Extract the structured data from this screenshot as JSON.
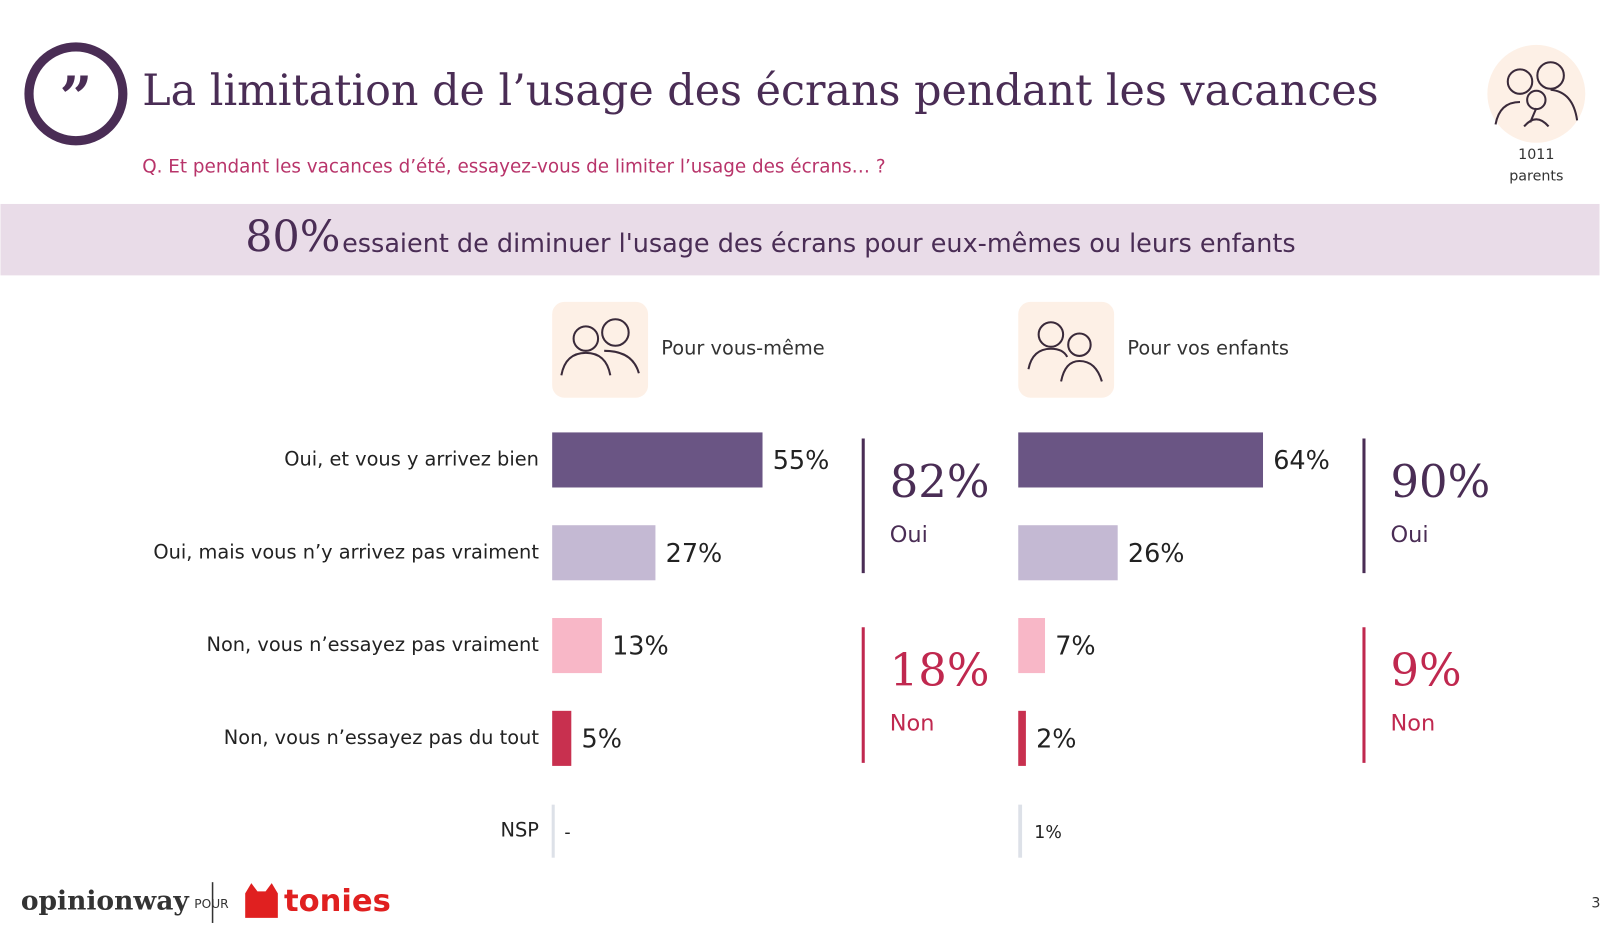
{
  "header": {
    "title": "La limitation de l’usage des écrans pendant les vacances",
    "question": "Q. Et pendant les vacances d’été, essayez-vous de limiter l’usage des écrans… ?",
    "sample_size": "1011",
    "sample_label": "parents"
  },
  "banner": {
    "figure": "80%",
    "text": "essaient de diminuer l'usage des écrans pour eux-mêmes ou leurs enfants"
  },
  "chart_data": {
    "type": "bar",
    "categories": [
      "Oui, et vous y arrivez bien",
      "Oui, mais vous n’y arrivez pas vraiment",
      "Non, vous n’essayez pas vraiment",
      "Non, vous n’essayez pas du tout",
      "NSP"
    ],
    "colors": [
      "#6a5584",
      "#c4b9d3",
      "#f8b7c7",
      "#c8304f",
      "#dde1e8"
    ],
    "xlim": [
      0,
      100
    ],
    "series": [
      {
        "name": "Pour vous-même",
        "values": [
          55,
          27,
          13,
          5,
          null
        ],
        "value_labels": [
          "55%",
          "27%",
          "13%",
          "5%",
          "-"
        ]
      },
      {
        "name": "Pour vos enfants",
        "values": [
          64,
          26,
          7,
          2,
          1
        ],
        "value_labels": [
          "64%",
          "26%",
          "7%",
          "2%",
          "1%"
        ]
      }
    ],
    "summary": [
      {
        "label": "Oui",
        "color": "#4a2d55",
        "values": [
          82,
          90
        ],
        "value_labels": [
          "82%",
          "90%"
        ]
      },
      {
        "label": "Non",
        "color": "#c0284f",
        "values": [
          18,
          9
        ],
        "value_labels": [
          "18%",
          "9%"
        ]
      }
    ]
  },
  "footer": {
    "brand": "opinionway",
    "connector": "POUR",
    "client": "tonies",
    "page": "3"
  }
}
